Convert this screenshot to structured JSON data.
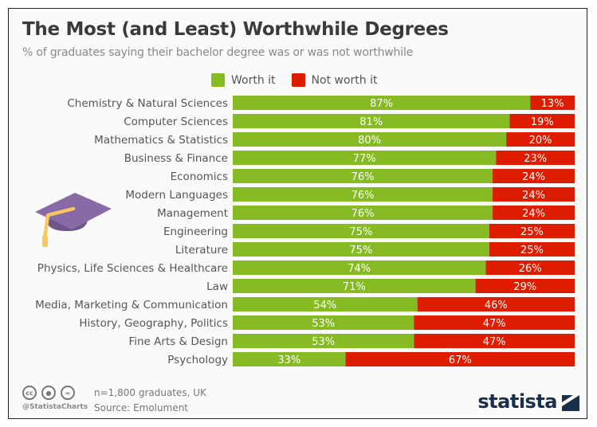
{
  "header": {
    "title": "The Most (and Least) Worthwhile Degrees",
    "subtitle": "% of graduates saying their bachelor degree was or was not worthwhile"
  },
  "legend": {
    "worth": "Worth it",
    "not_worth": "Not worth it"
  },
  "colors": {
    "worth": "#86bb24",
    "not_worth": "#dd1c00",
    "label_text": "#555555",
    "cap": "#8a6aa6",
    "tassel": "#f7c760"
  },
  "chart_data": {
    "type": "bar",
    "orientation": "horizontal",
    "stacked": true,
    "title": "The Most (and Least) Worthwhile Degrees",
    "subtitle": "% of graduates saying their bachelor degree was or was not worthwhile",
    "xlabel": "",
    "ylabel": "",
    "xlim": [
      0,
      100
    ],
    "legend_position": "top",
    "grid": false,
    "categories": [
      "Chemistry & Natural Sciences",
      "Computer Sciences",
      "Mathematics & Statistics",
      "Business & Finance",
      "Economics",
      "Modern Languages",
      "Management",
      "Engineering",
      "Literature",
      "Physics, Life Sciences & Healthcare",
      "Law",
      "Media, Marketing & Communication",
      "History, Geography, Politics",
      "Fine Arts & Design",
      "Psychology"
    ],
    "series": [
      {
        "name": "Worth it",
        "values": [
          87,
          81,
          80,
          77,
          76,
          76,
          76,
          75,
          75,
          74,
          71,
          54,
          53,
          53,
          33
        ]
      },
      {
        "name": "Not worth it",
        "values": [
          13,
          19,
          20,
          23,
          24,
          24,
          24,
          25,
          25,
          26,
          29,
          46,
          47,
          47,
          67
        ]
      }
    ]
  },
  "footer": {
    "note": "n=1,800 graduates, UK",
    "source": "Source: Emolument",
    "handle": "@StatistaCharts",
    "cc_icons": [
      "cc",
      "by",
      "="
    ],
    "logo": "statista"
  }
}
